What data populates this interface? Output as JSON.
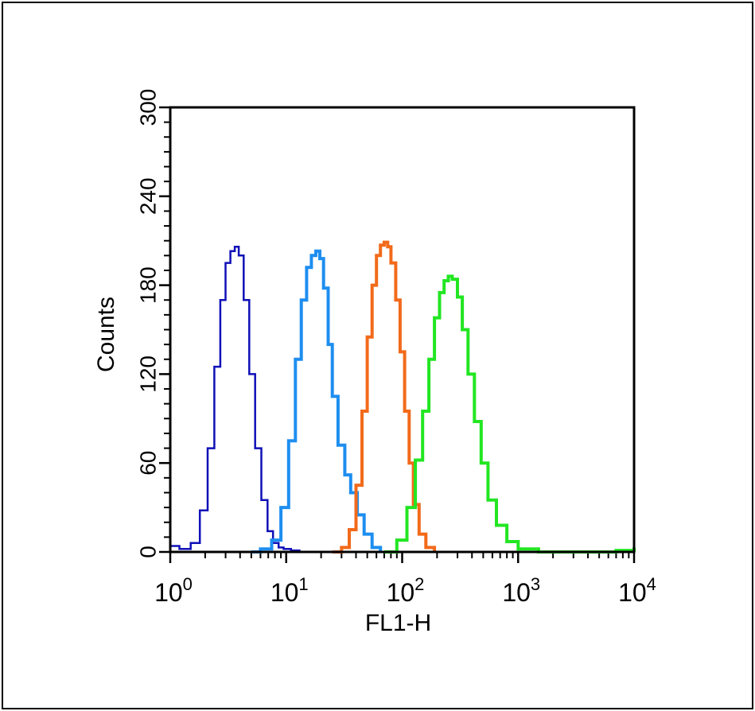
{
  "chart_data": {
    "type": "line",
    "subtype": "flow-cytometry-histogram",
    "xlabel": "FL1-H",
    "ylabel": "Counts",
    "xscale": "log",
    "xlim": [
      1,
      10000
    ],
    "ylim": [
      0,
      300
    ],
    "x_ticks": [
      {
        "value": 1,
        "base": "10",
        "exp": "0"
      },
      {
        "value": 10,
        "base": "10",
        "exp": "1"
      },
      {
        "value": 100,
        "base": "10",
        "exp": "2"
      },
      {
        "value": 1000,
        "base": "10",
        "exp": "3"
      },
      {
        "value": 10000,
        "base": "10",
        "exp": "4"
      }
    ],
    "y_ticks": [
      "0",
      "60",
      "120",
      "180",
      "240",
      "300"
    ],
    "grid": false,
    "series": [
      {
        "color": "#1010b8",
        "x": [
          1.0,
          1.2,
          1.5,
          1.8,
          2.1,
          2.4,
          2.7,
          3.0,
          3.3,
          3.6,
          3.9,
          4.3,
          4.8,
          5.4,
          6.1,
          6.9,
          7.7,
          8.6,
          9.5,
          11,
          13
        ],
        "y": [
          4,
          2,
          6,
          28,
          70,
          125,
          170,
          195,
          203,
          206,
          200,
          170,
          120,
          70,
          35,
          14,
          6,
          3,
          2,
          1,
          0
        ]
      },
      {
        "color": "#1e8ef0",
        "x": [
          5.0,
          6.0,
          7.5,
          9.0,
          10.5,
          12,
          13.5,
          15,
          16.5,
          18,
          19.5,
          21,
          23,
          25,
          28,
          32,
          36,
          41,
          47,
          55,
          65
        ],
        "y": [
          0,
          2,
          8,
          30,
          75,
          130,
          170,
          192,
          200,
          203,
          198,
          178,
          140,
          105,
          72,
          52,
          40,
          25,
          12,
          3,
          0
        ]
      },
      {
        "color": "#f26a1a",
        "x": [
          25,
          30,
          35,
          40,
          45,
          50,
          55,
          60,
          65,
          70,
          75,
          80,
          88,
          96,
          105,
          115,
          125,
          140,
          160,
          190
        ],
        "y": [
          0,
          3,
          15,
          45,
          95,
          145,
          180,
          200,
          207,
          209,
          206,
          195,
          170,
          135,
          95,
          60,
          32,
          12,
          3,
          0
        ]
      },
      {
        "color": "#22e622",
        "x": [
          70,
          90,
          110,
          130,
          150,
          170,
          190,
          210,
          230,
          250,
          270,
          300,
          330,
          370,
          420,
          480,
          550,
          650,
          800,
          1000,
          1500,
          3000,
          5500,
          7000,
          10000
        ],
        "y": [
          0,
          8,
          30,
          62,
          95,
          130,
          158,
          175,
          183,
          186,
          184,
          172,
          150,
          120,
          88,
          60,
          35,
          18,
          7,
          2,
          0,
          0,
          0,
          1,
          3
        ]
      }
    ]
  }
}
